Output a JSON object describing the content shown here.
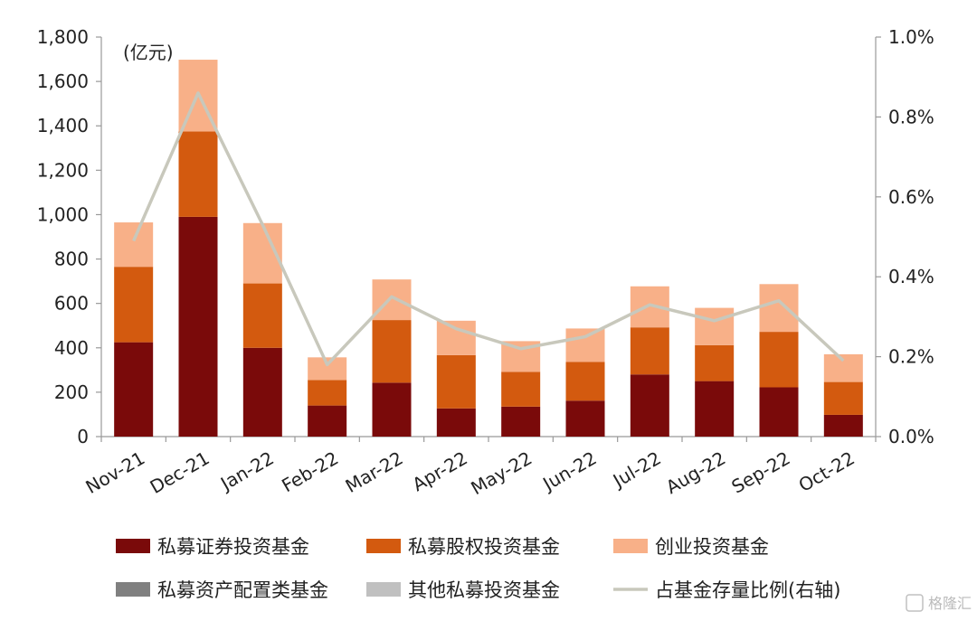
{
  "chart_data": {
    "type": "bar",
    "stacked": true,
    "unit_label": "(亿元)",
    "categories": [
      "Nov-21",
      "Dec-21",
      "Jan-22",
      "Feb-22",
      "Mar-22",
      "Apr-22",
      "May-22",
      "Jun-22",
      "Jul-22",
      "Aug-22",
      "Sep-22",
      "Oct-22"
    ],
    "ylim": [
      0,
      1800
    ],
    "yticks": [
      "0",
      "200",
      "400",
      "600",
      "800",
      "1,000",
      "1,200",
      "1,400",
      "1,600",
      "1,800"
    ],
    "y2lim": [
      0,
      1.0
    ],
    "y2ticks": [
      "0.0%",
      "0.2%",
      "0.4%",
      "0.6%",
      "0.8%",
      "1.0%"
    ],
    "series": [
      {
        "name": "私募证券投资基金",
        "type": "bar",
        "color": "#7a0a0a",
        "values": [
          425,
          990,
          400,
          140,
          243,
          127,
          135,
          162,
          280,
          250,
          222,
          98
        ]
      },
      {
        "name": "私募股权投资基金",
        "type": "bar",
        "color": "#d35a0f",
        "values": [
          340,
          385,
          290,
          115,
          282,
          240,
          157,
          175,
          212,
          162,
          250,
          148
        ]
      },
      {
        "name": "创业投资基金",
        "type": "bar",
        "color": "#f8b088",
        "values": [
          200,
          323,
          272,
          102,
          183,
          155,
          138,
          150,
          185,
          168,
          215,
          125
        ]
      },
      {
        "name": "私募资产配置类基金",
        "type": "bar",
        "color": "#808080",
        "values": [
          0,
          0,
          0,
          0,
          0,
          0,
          0,
          0,
          0,
          0,
          0,
          0
        ]
      },
      {
        "name": "其他私募投资基金",
        "type": "bar",
        "color": "#c0c0c0",
        "values": [
          0,
          0,
          0,
          0,
          0,
          0,
          0,
          0,
          0,
          0,
          0,
          0
        ]
      },
      {
        "name": "占基金存量比例(右轴)",
        "type": "line",
        "axis": "right",
        "color": "#c8c8bc",
        "values": [
          0.49,
          0.86,
          0.53,
          0.18,
          0.35,
          0.27,
          0.22,
          0.25,
          0.33,
          0.29,
          0.34,
          0.19
        ]
      }
    ],
    "legend_position": "bottom",
    "grid": false
  },
  "watermark": "格隆汇"
}
